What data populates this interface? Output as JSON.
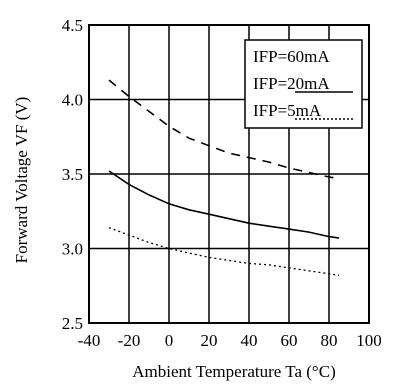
{
  "chart_data": {
    "type": "line",
    "title": "",
    "xlabel": "Ambient Temperature Ta (°C)",
    "ylabel": "Forward Voltage  VF (V)",
    "xlim": [
      -40,
      100
    ],
    "ylim": [
      2.5,
      4.5
    ],
    "xticks": [
      "-40",
      "-20",
      "0",
      "20",
      "40",
      "60",
      "80",
      "100"
    ],
    "yticks": [
      "2.5",
      "3.0",
      "3.5",
      "4.0",
      "4.5"
    ],
    "grid": true,
    "legend_position": "top-right",
    "series": [
      {
        "name": "IFP=60mA",
        "style": "dashed",
        "x": [
          -30,
          -20,
          -10,
          0,
          10,
          20,
          30,
          40,
          50,
          60,
          70,
          80,
          85
        ],
        "y": [
          4.13,
          4.02,
          3.92,
          3.82,
          3.74,
          3.69,
          3.64,
          3.61,
          3.58,
          3.54,
          3.51,
          3.48,
          3.47
        ]
      },
      {
        "name": "IFP=20mA",
        "style": "solid",
        "x": [
          -30,
          -20,
          -10,
          0,
          10,
          20,
          30,
          40,
          50,
          60,
          70,
          80,
          85
        ],
        "y": [
          3.52,
          3.43,
          3.36,
          3.3,
          3.26,
          3.23,
          3.2,
          3.17,
          3.15,
          3.13,
          3.11,
          3.08,
          3.07
        ]
      },
      {
        "name": "IFP=5mA",
        "style": "dotted",
        "x": [
          -30,
          -20,
          -10,
          0,
          10,
          20,
          30,
          40,
          50,
          60,
          70,
          80,
          85
        ],
        "y": [
          3.14,
          3.09,
          3.04,
          3.0,
          2.97,
          2.94,
          2.92,
          2.9,
          2.89,
          2.87,
          2.85,
          2.83,
          2.82
        ]
      }
    ]
  }
}
